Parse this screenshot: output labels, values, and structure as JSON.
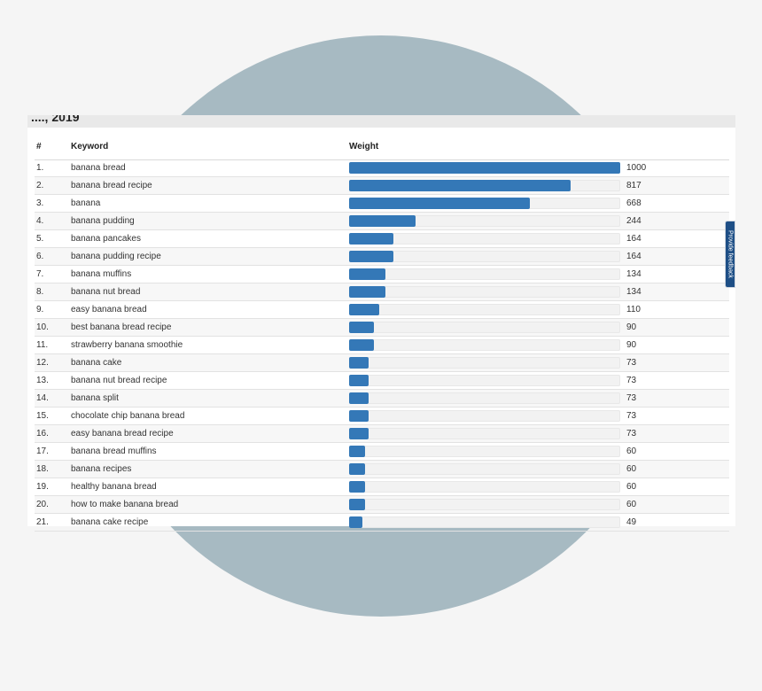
{
  "header_fragment": "...., 2019",
  "table": {
    "headers": {
      "num": "#",
      "keyword": "Keyword",
      "weight": "Weight"
    },
    "max_weight": 1000,
    "rows": [
      {
        "num": "1.",
        "keyword": "banana bread",
        "weight": 1000
      },
      {
        "num": "2.",
        "keyword": "banana bread recipe",
        "weight": 817
      },
      {
        "num": "3.",
        "keyword": "banana",
        "weight": 668
      },
      {
        "num": "4.",
        "keyword": "banana pudding",
        "weight": 244
      },
      {
        "num": "5.",
        "keyword": "banana pancakes",
        "weight": 164
      },
      {
        "num": "6.",
        "keyword": "banana pudding recipe",
        "weight": 164
      },
      {
        "num": "7.",
        "keyword": "banana muffins",
        "weight": 134
      },
      {
        "num": "8.",
        "keyword": "banana nut bread",
        "weight": 134
      },
      {
        "num": "9.",
        "keyword": "easy banana bread",
        "weight": 110
      },
      {
        "num": "10.",
        "keyword": "best banana bread recipe",
        "weight": 90
      },
      {
        "num": "11.",
        "keyword": "strawberry banana smoothie",
        "weight": 90
      },
      {
        "num": "12.",
        "keyword": "banana cake",
        "weight": 73
      },
      {
        "num": "13.",
        "keyword": "banana nut bread recipe",
        "weight": 73
      },
      {
        "num": "14.",
        "keyword": "banana split",
        "weight": 73
      },
      {
        "num": "15.",
        "keyword": "chocolate chip banana bread",
        "weight": 73
      },
      {
        "num": "16.",
        "keyword": "easy banana bread recipe",
        "weight": 73
      },
      {
        "num": "17.",
        "keyword": "banana bread muffins",
        "weight": 60
      },
      {
        "num": "18.",
        "keyword": "banana recipes",
        "weight": 60
      },
      {
        "num": "19.",
        "keyword": "healthy banana bread",
        "weight": 60
      },
      {
        "num": "20.",
        "keyword": "how to make banana bread",
        "weight": 60
      },
      {
        "num": "21.",
        "keyword": "banana cake recipe",
        "weight": 49
      }
    ]
  },
  "feedback_tab": {
    "label": "Provide feedback"
  },
  "colors": {
    "bar_fill": "#3478b7",
    "bar_track": "#f2f2f2",
    "background_circle": "#a7bac2",
    "feedback_tab": "#1e4f86"
  }
}
